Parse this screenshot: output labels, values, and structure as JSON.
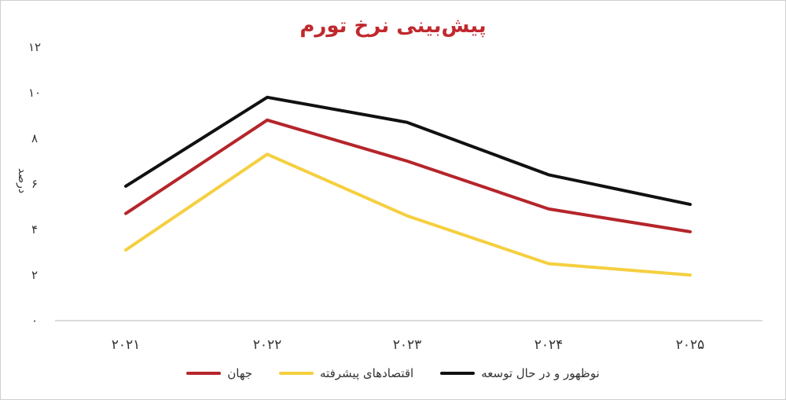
{
  "chart_data": {
    "type": "line",
    "title": "پیش‌بینی نرخ تورم",
    "ylabel": "درصد",
    "xlabel": "",
    "categories": [
      "۲۰۲۱",
      "۲۰۲۲",
      "۲۰۲۳",
      "۲۰۲۴",
      "۲۰۲۵"
    ],
    "ylim": [
      0,
      12
    ],
    "yticks": [
      "۰",
      "۲",
      "۴",
      "۶",
      "۸",
      "۱۰",
      "۱۲"
    ],
    "grid": false,
    "legend_position": "bottom",
    "series": [
      {
        "name": "جهان",
        "color": "#b5252b",
        "values": [
          4.7,
          8.8,
          7.0,
          4.9,
          3.9
        ]
      },
      {
        "name": "اقتصادهای پیشرفته",
        "color": "#f5cf3f",
        "values": [
          3.1,
          7.3,
          4.6,
          2.5,
          2.0
        ]
      },
      {
        "name": "نوظهور و در حال توسعه",
        "color": "#111111",
        "values": [
          5.9,
          9.8,
          8.7,
          6.4,
          5.1
        ]
      }
    ]
  }
}
